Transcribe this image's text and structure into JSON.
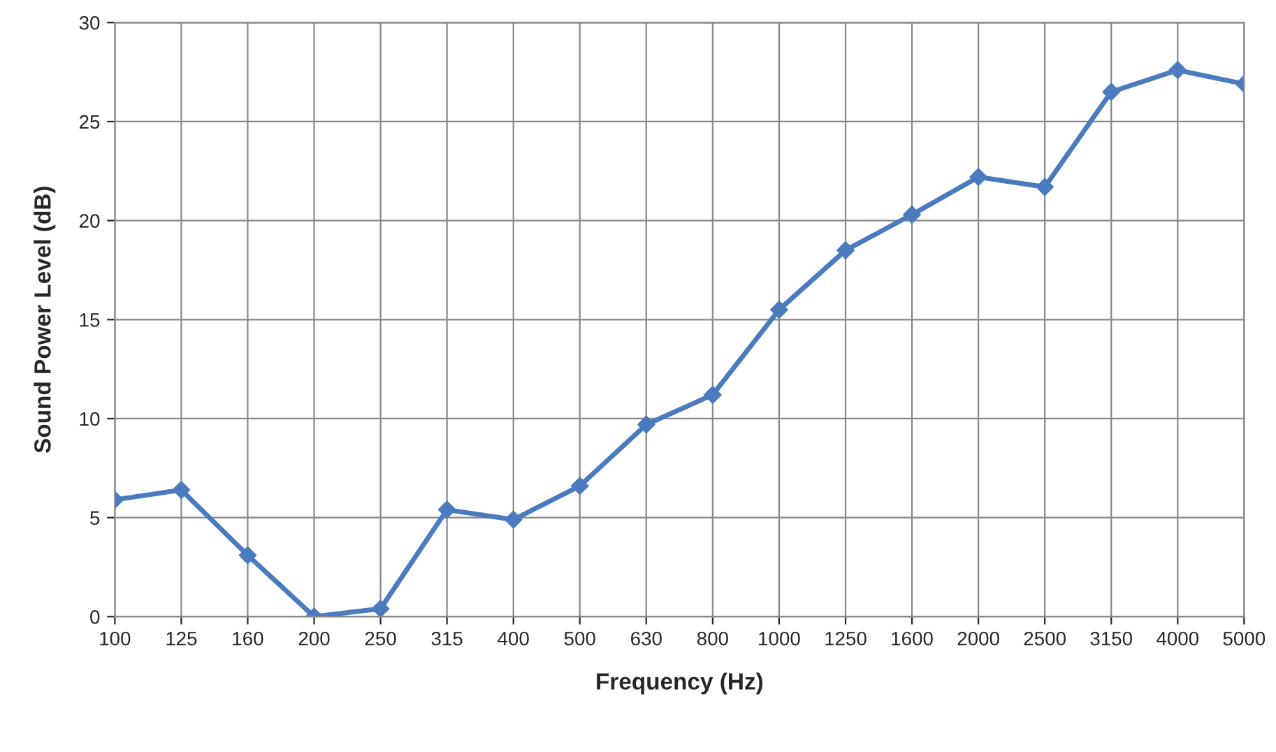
{
  "chart_data": {
    "type": "line",
    "xlabel": "Frequency (Hz)",
    "ylabel": "Sound Power Level (dB)",
    "categories": [
      "100",
      "125",
      "160",
      "200",
      "250",
      "315",
      "400",
      "500",
      "630",
      "800",
      "1000",
      "1250",
      "1600",
      "2000",
      "2500",
      "3150",
      "4000",
      "5000"
    ],
    "series": [
      {
        "color": "#4a7bbf",
        "values": [
          5.9,
          6.4,
          3.1,
          0,
          0.4,
          5.4,
          4.9,
          6.6,
          9.7,
          11.2,
          15.5,
          18.5,
          20.3,
          22.2,
          21.7,
          26.5,
          27.6,
          26.9
        ]
      }
    ],
    "ylim": [
      0,
      30
    ],
    "yticks": [
      0,
      5,
      10,
      15,
      20,
      25,
      30
    ],
    "grid": true,
    "marker": "diamond",
    "line_style": "solid"
  }
}
